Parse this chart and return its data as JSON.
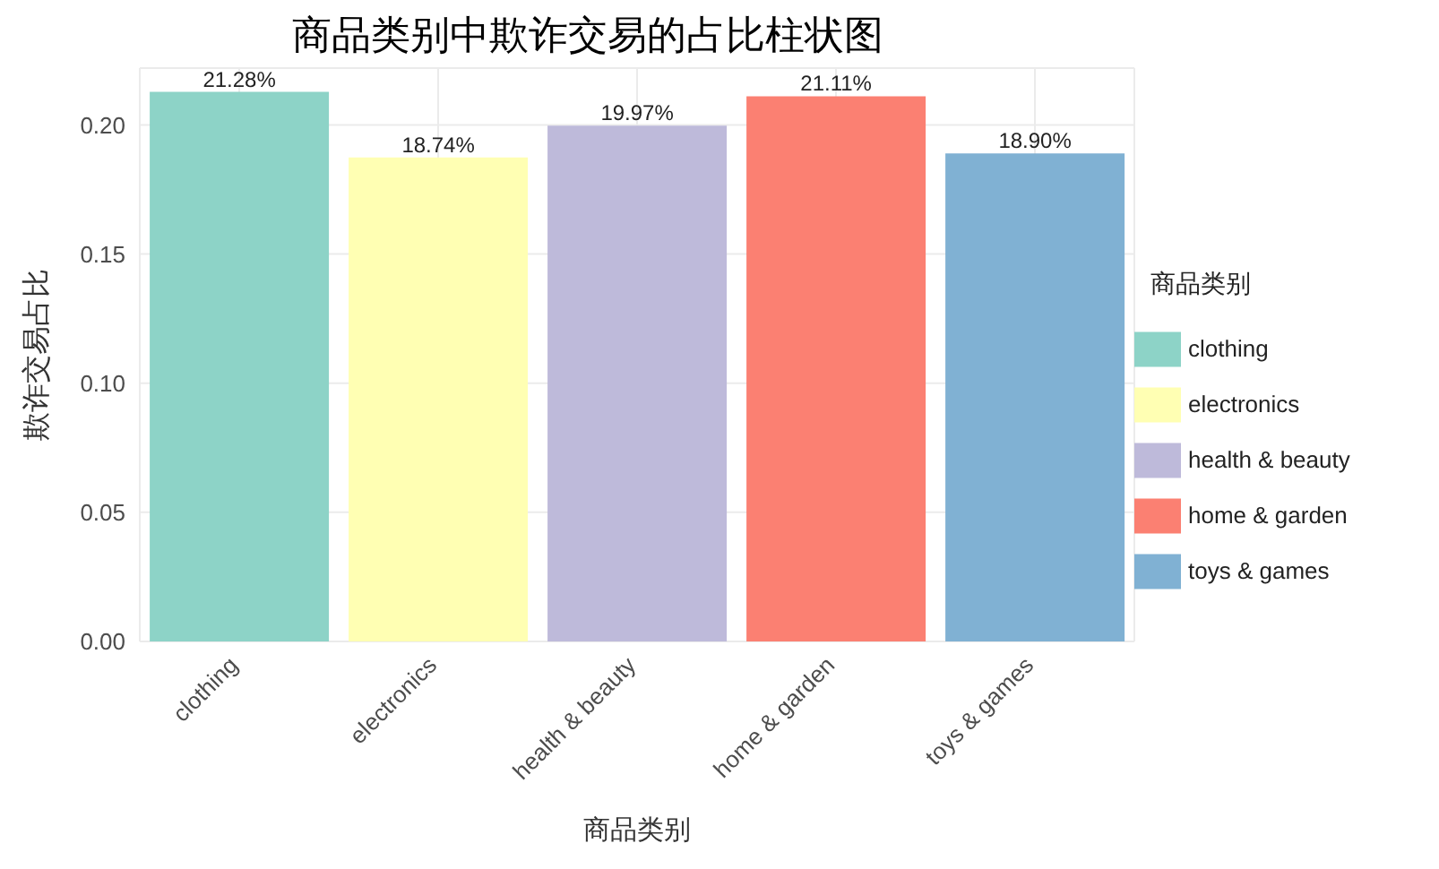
{
  "chart_data": {
    "type": "bar",
    "title": "商品类别中欺诈交易的占比柱状图",
    "xlabel": "商品类别",
    "ylabel": "欺诈交易占比",
    "legend_title": "商品类别",
    "categories": [
      "clothing",
      "electronics",
      "health & beauty",
      "home & garden",
      "toys & games"
    ],
    "series": [
      {
        "name": "clothing",
        "color": "#8dd3c7",
        "values": [
          0.2128,
          null,
          null,
          null,
          null
        ],
        "value_labels": [
          "21.28%",
          null,
          null,
          null,
          null
        ]
      },
      {
        "name": "electronics",
        "color": "#ffffb3",
        "values": [
          null,
          0.1874,
          null,
          null,
          null
        ],
        "value_labels": [
          null,
          "18.74%",
          null,
          null,
          null
        ]
      },
      {
        "name": "health & beauty",
        "color": "#bebada",
        "values": [
          null,
          null,
          0.1997,
          null,
          null
        ],
        "value_labels": [
          null,
          null,
          "19.97%",
          null,
          null
        ]
      },
      {
        "name": "home & garden",
        "color": "#fb8072",
        "values": [
          null,
          null,
          null,
          0.2111,
          null
        ],
        "value_labels": [
          null,
          null,
          null,
          "21.11%",
          null
        ]
      },
      {
        "name": "toys & games",
        "color": "#80b1d3",
        "values": [
          null,
          null,
          null,
          null,
          0.189
        ],
        "value_labels": [
          null,
          null,
          null,
          null,
          "18.90%"
        ]
      }
    ],
    "stacked": true,
    "ylim": [
      0,
      0.222
    ],
    "yticks": [
      {
        "value": 0,
        "label": "0.00"
      },
      {
        "value": 0.05,
        "label": "0.05"
      },
      {
        "value": 0.1,
        "label": "0.10"
      },
      {
        "value": 0.15,
        "label": "0.15"
      },
      {
        "value": 0.2,
        "label": "0.20"
      }
    ],
    "grid": true,
    "legend": "right"
  }
}
